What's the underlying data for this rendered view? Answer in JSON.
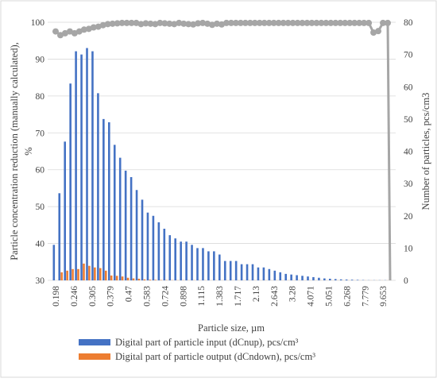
{
  "chart_data": {
    "type": "bar",
    "title": "",
    "xlabel": "Particle size, µm",
    "ylabel": "Particle concentration reduction (manually calculated), %",
    "y2label": "Number of particles, pcs/cm3",
    "ylim": [
      30,
      100
    ],
    "y2lim": [
      0,
      80
    ],
    "yticks": [
      "30",
      "40",
      "50",
      "60",
      "70",
      "80",
      "90",
      "100"
    ],
    "y2ticks": [
      "0",
      "10",
      "20",
      "30",
      "40",
      "50",
      "60",
      "70",
      "80"
    ],
    "grid": true,
    "legend_position": "bottom",
    "x_tick_labels": [
      "0.198",
      "0.246",
      "0.305",
      "0.379",
      "0.47",
      "0.583",
      "0.724",
      "0.898",
      "1.115",
      "1.383",
      "1.717",
      "2.13",
      "2.643",
      "3.28",
      "4.071",
      "5.051",
      "6.268",
      "7.779",
      "9.653"
    ],
    "series": [
      {
        "name": "Digital part of particle input (dCnup), pcs/cm³",
        "type": "bar",
        "axis": "right",
        "color": "#4472c4",
        "values": [
          11,
          27,
          43,
          61,
          71,
          70,
          72,
          71,
          58,
          50,
          49,
          42,
          38,
          34,
          32,
          28,
          25,
          21,
          20,
          18,
          16,
          14,
          13,
          12,
          12,
          11,
          10,
          10,
          9,
          9,
          8,
          6,
          6,
          6,
          5,
          5,
          5,
          4,
          4,
          3.5,
          3,
          2.5,
          2,
          1.8,
          1.6,
          1.4,
          1.2,
          1,
          0.8,
          0.6,
          0.5,
          0.4,
          0.3,
          0.25,
          0.2,
          0.15,
          0.1,
          0.05,
          0.05,
          0.05,
          0.05
        ]
      },
      {
        "name": "Digital part of particle output (dCndown), pcs/cm³",
        "type": "bar",
        "axis": "right",
        "color": "#ed7d31",
        "values": [
          0,
          2.5,
          3,
          3.5,
          3.5,
          5.2,
          4.5,
          4,
          3.8,
          3,
          1.5,
          1.4,
          1.2,
          0.8,
          0.6,
          0.5,
          0.3,
          0.2,
          0.15,
          0.1,
          0.08,
          0.06,
          0.05,
          0.05,
          0.04,
          0.04,
          0.03,
          0.03,
          0.02,
          0.02,
          0.02,
          0.02,
          0.02,
          0.02,
          0.02,
          0.02,
          0.02,
          0.02,
          0.02,
          0.02,
          0.02,
          0.02,
          0.02,
          0.02,
          0.02,
          0.02,
          0.02,
          0.02,
          0.02,
          0.02,
          0.02,
          0.02,
          0.02,
          0.02,
          0.02,
          0.02,
          0.02,
          0.02,
          0.02,
          0.02,
          0.02
        ]
      },
      {
        "name": "",
        "type": "line",
        "axis": "left",
        "color": "#a6a6a6",
        "values": [
          97.5,
          96.5,
          97.0,
          97.5,
          97.0,
          97.5,
          98.0,
          98.2,
          98.6,
          98.8,
          99.2,
          99.5,
          99.6,
          99.7,
          99.8,
          99.8,
          99.8,
          99.8,
          99.5,
          99.7,
          99.6,
          99.5,
          99.8,
          99.7,
          99.6,
          99.5,
          99.8,
          99.6,
          99.5,
          99.4,
          99.7,
          99.8,
          99.6,
          99.3,
          99.6,
          99.4,
          99.8,
          99.8,
          99.8,
          99.8,
          99.8,
          99.8,
          99.8,
          99.8,
          99.8,
          99.8,
          99.8,
          99.8,
          99.8,
          99.8,
          99.8,
          99.8,
          99.8,
          99.8,
          99.8,
          99.8,
          99.8,
          99.8,
          99.8,
          99.8,
          99.8,
          99.8,
          99.8,
          99.8,
          99.8,
          99.8,
          99.8,
          97.2,
          97.6,
          99.8,
          99.8,
          30.0
        ]
      }
    ]
  }
}
